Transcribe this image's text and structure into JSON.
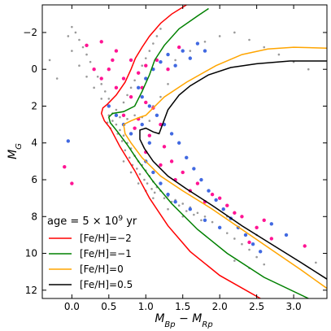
{
  "chart_data": {
    "type": "scatter",
    "title": "",
    "xlabel": "M_Bp − M_Rp",
    "ylabel": "M_G",
    "xlim": [
      -0.4,
      3.45
    ],
    "ylim": [
      12.45,
      -3.5
    ],
    "y_inverted": true,
    "grid": false,
    "legend_placement": "bottom-left",
    "x_ticks": [
      0.0,
      0.5,
      1.0,
      1.5,
      2.0,
      2.5,
      3.0
    ],
    "x_tick_labels": [
      "0.0",
      "0.5",
      "1.0",
      "1.5",
      "2.0",
      "2.5",
      "3.0"
    ],
    "y_ticks": [
      -2,
      0,
      2,
      4,
      6,
      8,
      10,
      12
    ],
    "y_tick_labels": [
      "−2",
      "0",
      "2",
      "4",
      "6",
      "8",
      "10",
      "12"
    ],
    "legend": {
      "title": "age = 5 × 10^9 yr",
      "entries": [
        {
          "label": "[Fe/H]=−2",
          "color": "#ff0000"
        },
        {
          "label": "[Fe/H]=−1",
          "color": "#008000"
        },
        {
          "label": "[Fe/H]=0",
          "color": "#ffa500"
        },
        {
          "label": "[Fe/H]=0.5",
          "color": "#000000"
        }
      ]
    },
    "isochrones": [
      {
        "name": "[Fe/H]=−2",
        "color": "#ff0000",
        "x": [
          2.55,
          2.0,
          1.6,
          1.3,
          1.05,
          0.85,
          0.65,
          0.52,
          0.44,
          0.4,
          0.42,
          0.48,
          0.6,
          0.72,
          0.8,
          0.86,
          0.95,
          1.05,
          1.2,
          1.35,
          1.55
        ],
        "y": [
          12.45,
          11.2,
          9.9,
          8.5,
          7.0,
          5.5,
          4.2,
          3.2,
          2.8,
          2.4,
          2.1,
          1.9,
          1.4,
          0.7,
          0.0,
          -0.6,
          -1.2,
          -1.8,
          -2.5,
          -3.0,
          -3.5
        ]
      },
      {
        "name": "[Fe/H]=−1",
        "color": "#008000",
        "x": [
          3.2,
          2.6,
          2.1,
          1.7,
          1.35,
          1.1,
          0.9,
          0.75,
          0.62,
          0.52,
          0.5,
          0.55,
          0.7,
          0.85,
          0.95,
          1.05,
          1.12,
          1.25,
          1.45,
          1.7,
          1.85
        ],
        "y": [
          12.45,
          11.3,
          10.0,
          8.7,
          7.3,
          6.1,
          5.0,
          4.1,
          3.4,
          2.9,
          2.6,
          2.4,
          2.3,
          2.0,
          1.2,
          0.3,
          -0.5,
          -1.3,
          -2.2,
          -2.9,
          -3.3
        ]
      },
      {
        "name": "[Fe/H]=0",
        "color": "#ffa500",
        "x": [
          3.45,
          3.1,
          2.7,
          2.3,
          1.9,
          1.5,
          1.2,
          0.95,
          0.8,
          0.72,
          0.7,
          0.8,
          0.92,
          1.0,
          1.05,
          1.25,
          1.55,
          1.95,
          2.3,
          2.65,
          3.0,
          3.45
        ],
        "y": [
          11.9,
          10.9,
          9.8,
          8.7,
          7.6,
          6.6,
          5.8,
          4.8,
          4.0,
          3.5,
          3.0,
          2.8,
          2.6,
          2.5,
          2.3,
          1.5,
          0.7,
          -0.2,
          -0.8,
          -1.1,
          -1.2,
          -1.15
        ]
      },
      {
        "name": "[Fe/H]=0.5",
        "color": "#000000",
        "x": [
          3.45,
          3.1,
          2.7,
          2.3,
          1.9,
          1.55,
          1.3,
          1.1,
          0.98,
          0.92,
          0.92,
          1.0,
          1.1,
          1.18,
          1.3,
          1.45,
          1.6,
          1.85,
          2.15,
          2.5,
          2.95,
          3.45
        ],
        "y": [
          11.4,
          10.5,
          9.5,
          8.5,
          7.4,
          6.5,
          5.8,
          5.0,
          4.3,
          3.8,
          3.3,
          3.2,
          3.4,
          3.5,
          2.2,
          1.4,
          0.9,
          0.3,
          -0.1,
          -0.3,
          -0.45,
          -0.45
        ]
      }
    ],
    "scatter_series": [
      {
        "name": "",
        "color": "#999999",
        "size": 1.3,
        "points": [
          [
            0.55,
            2.8
          ],
          [
            0.6,
            3.0
          ],
          [
            0.65,
            3.3
          ],
          [
            0.7,
            3.6
          ],
          [
            0.75,
            4.0
          ],
          [
            0.8,
            4.3
          ],
          [
            0.85,
            4.7
          ],
          [
            0.9,
            5.0
          ],
          [
            0.95,
            5.2
          ],
          [
            1.0,
            5.5
          ],
          [
            1.05,
            5.8
          ],
          [
            1.1,
            6.1
          ],
          [
            1.15,
            6.4
          ],
          [
            1.2,
            6.6
          ],
          [
            1.3,
            6.9
          ],
          [
            1.4,
            7.1
          ],
          [
            1.5,
            7.3
          ],
          [
            1.6,
            7.5
          ],
          [
            1.7,
            7.8
          ],
          [
            1.8,
            8.0
          ],
          [
            1.9,
            8.3
          ],
          [
            2.0,
            8.6
          ],
          [
            2.1,
            8.9
          ],
          [
            2.2,
            9.2
          ],
          [
            2.3,
            9.5
          ],
          [
            2.4,
            9.8
          ],
          [
            2.5,
            10.2
          ],
          [
            2.6,
            10.6
          ],
          [
            0.5,
            2.5
          ],
          [
            0.48,
            2.9
          ],
          [
            0.52,
            3.2
          ],
          [
            0.62,
            3.5
          ],
          [
            0.68,
            3.9
          ],
          [
            0.72,
            4.4
          ],
          [
            0.78,
            4.8
          ],
          [
            0.82,
            5.2
          ],
          [
            0.88,
            5.4
          ],
          [
            0.92,
            5.7
          ],
          [
            0.98,
            6.0
          ],
          [
            1.02,
            6.2
          ],
          [
            1.08,
            6.5
          ],
          [
            1.12,
            6.7
          ],
          [
            1.25,
            7.0
          ],
          [
            1.35,
            7.2
          ],
          [
            1.45,
            7.4
          ],
          [
            1.55,
            7.7
          ],
          [
            1.65,
            7.9
          ],
          [
            1.75,
            8.2
          ],
          [
            0.6,
            2.2
          ],
          [
            0.7,
            1.8
          ],
          [
            0.75,
            1.4
          ],
          [
            0.8,
            1.0
          ],
          [
            0.85,
            0.6
          ],
          [
            0.9,
            0.2
          ],
          [
            0.95,
            -0.2
          ],
          [
            1.0,
            -0.6
          ],
          [
            1.05,
            -1.0
          ],
          [
            1.1,
            -1.4
          ],
          [
            1.15,
            -1.8
          ],
          [
            1.2,
            -2.2
          ],
          [
            0.5,
            1.6
          ],
          [
            0.45,
            1.2
          ],
          [
            0.4,
            0.8
          ],
          [
            0.35,
            0.4
          ],
          [
            0.3,
            0.0
          ],
          [
            0.25,
            -0.4
          ],
          [
            0.2,
            -0.8
          ],
          [
            0.15,
            -1.2
          ],
          [
            0.1,
            -1.6
          ],
          [
            0.05,
            -2.0
          ],
          [
            -0.05,
            -1.8
          ],
          [
            0.0,
            -1.0
          ],
          [
            0.1,
            -0.2
          ],
          [
            0.2,
            0.4
          ],
          [
            0.3,
            1.0
          ],
          [
            0.4,
            1.6
          ],
          [
            0.85,
            2.5
          ],
          [
            0.95,
            2.6
          ],
          [
            1.05,
            2.8
          ],
          [
            0.75,
            2.7
          ],
          [
            0.65,
            2.6
          ],
          [
            0.55,
            2.4
          ],
          [
            1.4,
            -0.5
          ],
          [
            1.6,
            -1.0
          ],
          [
            1.8,
            -1.5
          ],
          [
            2.0,
            -1.8
          ],
          [
            2.2,
            -2.0
          ],
          [
            2.4,
            -1.6
          ],
          [
            2.6,
            -1.2
          ],
          [
            2.8,
            -0.8
          ],
          [
            3.0,
            -0.4
          ],
          [
            3.2,
            0.0
          ],
          [
            1.3,
            0.8
          ],
          [
            1.2,
            1.5
          ],
          [
            1.1,
            2.0
          ],
          [
            0.7,
            5.0
          ],
          [
            0.8,
            5.6
          ],
          [
            0.9,
            6.2
          ],
          [
            1.0,
            6.6
          ],
          [
            1.1,
            7.0
          ],
          [
            1.3,
            7.6
          ],
          [
            1.5,
            8.0
          ],
          [
            2.2,
            10.4
          ],
          [
            2.4,
            10.8
          ],
          [
            2.1,
            8.0
          ],
          [
            2.5,
            9.0
          ],
          [
            3.3,
            10.5
          ],
          [
            -0.3,
            -0.5
          ],
          [
            -0.2,
            0.5
          ],
          [
            0.0,
            -2.3
          ]
        ]
      },
      {
        "name": "",
        "color": "#ff1493",
        "size": 2.2,
        "points": [
          [
            0.4,
            -1.5
          ],
          [
            0.6,
            -1.0
          ],
          [
            0.3,
            0.0
          ],
          [
            0.7,
            0.5
          ],
          [
            0.5,
            0.0
          ],
          [
            0.8,
            -0.5
          ],
          [
            0.9,
            0.2
          ],
          [
            1.0,
            -0.2
          ],
          [
            0.6,
            1.0
          ],
          [
            0.8,
            1.5
          ],
          [
            1.0,
            1.8
          ],
          [
            1.1,
            2.1
          ],
          [
            0.7,
            2.5
          ],
          [
            0.9,
            2.7
          ],
          [
            1.2,
            3.0
          ],
          [
            0.85,
            3.2
          ],
          [
            1.05,
            3.6
          ],
          [
            1.25,
            4.2
          ],
          [
            1.35,
            5.0
          ],
          [
            1.5,
            5.6
          ],
          [
            1.7,
            6.2
          ],
          [
            1.9,
            6.8
          ],
          [
            2.1,
            7.4
          ],
          [
            2.3,
            8.0
          ],
          [
            2.5,
            8.6
          ],
          [
            2.7,
            9.2
          ],
          [
            1.0,
            4.5
          ],
          [
            1.2,
            5.2
          ],
          [
            1.4,
            6.0
          ],
          [
            1.6,
            6.6
          ],
          [
            2.0,
            7.0
          ],
          [
            2.2,
            7.8
          ],
          [
            2.6,
            8.2
          ],
          [
            3.15,
            9.6
          ],
          [
            -0.1,
            5.3
          ],
          [
            0.0,
            6.2
          ],
          [
            0.2,
            -1.3
          ],
          [
            0.4,
            0.5
          ],
          [
            0.55,
            -0.5
          ],
          [
            1.15,
            -0.5
          ],
          [
            1.3,
            0.0
          ],
          [
            1.45,
            -1.2
          ],
          [
            0.95,
            1.0
          ],
          [
            1.8,
            7.2
          ],
          [
            2.4,
            9.4
          ]
        ]
      },
      {
        "name": "",
        "color": "#4169e1",
        "size": 2.2,
        "points": [
          [
            1.0,
            0.5
          ],
          [
            1.1,
            0.0
          ],
          [
            1.2,
            -0.4
          ],
          [
            1.3,
            -0.8
          ],
          [
            1.5,
            -1.0
          ],
          [
            1.7,
            -1.4
          ],
          [
            0.9,
            1.0
          ],
          [
            0.95,
            1.5
          ],
          [
            1.05,
            2.0
          ],
          [
            1.15,
            2.5
          ],
          [
            1.25,
            3.0
          ],
          [
            1.35,
            3.5
          ],
          [
            1.45,
            4.0
          ],
          [
            1.55,
            4.8
          ],
          [
            1.65,
            5.4
          ],
          [
            1.75,
            6.0
          ],
          [
            1.85,
            6.6
          ],
          [
            1.95,
            7.1
          ],
          [
            2.05,
            7.6
          ],
          [
            2.15,
            8.1
          ],
          [
            2.25,
            8.6
          ],
          [
            2.35,
            9.0
          ],
          [
            2.45,
            9.5
          ],
          [
            2.55,
            9.9
          ],
          [
            1.0,
            5.0
          ],
          [
            1.1,
            5.6
          ],
          [
            1.2,
            6.2
          ],
          [
            1.3,
            6.8
          ],
          [
            1.4,
            7.2
          ],
          [
            1.6,
            7.6
          ],
          [
            1.8,
            8.2
          ],
          [
            2.0,
            8.6
          ],
          [
            0.7,
            3.0
          ],
          [
            0.8,
            3.5
          ],
          [
            0.6,
            2.5
          ],
          [
            0.5,
            2.0
          ],
          [
            1.4,
            -0.2
          ],
          [
            1.6,
            -0.6
          ],
          [
            1.8,
            -1.0
          ],
          [
            0.95,
            3.0
          ],
          [
            1.05,
            4.0
          ],
          [
            -0.05,
            3.9
          ],
          [
            2.7,
            8.4
          ],
          [
            2.9,
            9.0
          ]
        ]
      }
    ]
  }
}
